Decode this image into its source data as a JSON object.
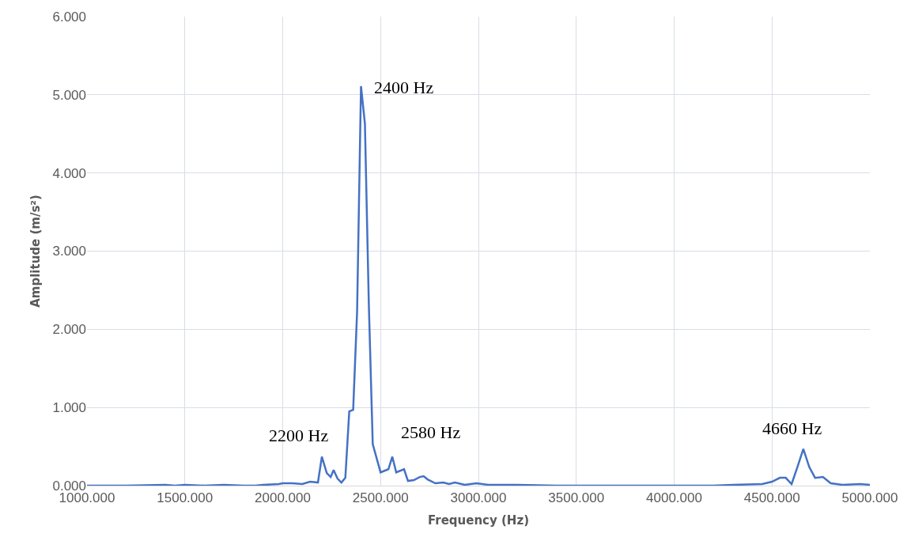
{
  "chart_data": {
    "type": "line",
    "xlabel": "Frequency (Hz)",
    "ylabel": "Amplitude (m/s²)",
    "series": [
      {
        "color": "#4472c4",
        "x": [
          1000,
          1200,
          1400,
          1450,
          1500,
          1600,
          1700,
          1800,
          1860,
          1900,
          1980,
          2000,
          2050,
          2100,
          2140,
          2180,
          2200,
          2225,
          2245,
          2260,
          2280,
          2300,
          2320,
          2340,
          2360,
          2380,
          2400,
          2420,
          2440,
          2460,
          2500,
          2540,
          2560,
          2580,
          2620,
          2640,
          2670,
          2700,
          2720,
          2740,
          2780,
          2820,
          2850,
          2880,
          2930,
          2990,
          3050,
          3200,
          3400,
          3600,
          3800,
          4000,
          4200,
          4300,
          4450,
          4500,
          4540,
          4570,
          4600,
          4630,
          4660,
          4690,
          4720,
          4760,
          4800,
          4860,
          4950,
          5000
        ],
        "values": [
          0,
          0,
          0.01,
          0,
          0.01,
          0,
          0.01,
          0,
          0,
          0.01,
          0.02,
          0.03,
          0.03,
          0.02,
          0.05,
          0.04,
          0.37,
          0.16,
          0.11,
          0.2,
          0.09,
          0.04,
          0.1,
          0.95,
          0.97,
          2.22,
          5.11,
          4.63,
          2.32,
          0.53,
          0.17,
          0.21,
          0.37,
          0.17,
          0.21,
          0.06,
          0.07,
          0.11,
          0.12,
          0.08,
          0.03,
          0.04,
          0.02,
          0.04,
          0.01,
          0.03,
          0.01,
          0.01,
          0,
          0,
          0,
          0,
          0,
          0.01,
          0.02,
          0.05,
          0.1,
          0.1,
          0.02,
          0.24,
          0.47,
          0.24,
          0.1,
          0.11,
          0.03,
          0.01,
          0.02,
          0.01
        ]
      }
    ],
    "xlim": [
      1000,
      5000
    ],
    "xticks": [
      {
        "value": 1000,
        "label": "1000.000"
      },
      {
        "value": 1500,
        "label": "1500.000"
      },
      {
        "value": 2000,
        "label": "2000.000"
      },
      {
        "value": 2500,
        "label": "2500.000"
      },
      {
        "value": 3000,
        "label": "3000.000"
      },
      {
        "value": 3500,
        "label": "3500.000"
      },
      {
        "value": 4000,
        "label": "4000.000"
      },
      {
        "value": 4500,
        "label": "4500.000"
      },
      {
        "value": 5000,
        "label": "5000.000"
      }
    ],
    "ylim": [
      0,
      6
    ],
    "yticks": [
      {
        "value": 0,
        "label": "0.000"
      },
      {
        "value": 1,
        "label": "1.000"
      },
      {
        "value": 2,
        "label": "2.000"
      },
      {
        "value": 3,
        "label": "3.000"
      },
      {
        "value": 4,
        "label": "4.000"
      },
      {
        "value": 5,
        "label": "5.000"
      },
      {
        "value": 6,
        "label": "6.000"
      }
    ],
    "grid": true,
    "marker": "none",
    "line_style": "solid",
    "annotations": [
      {
        "text": "2400 Hz",
        "x": 2400,
        "y": 5.11
      },
      {
        "text": "2200 Hz",
        "x": 2200,
        "y": 0.37
      },
      {
        "text": "2580 Hz",
        "x": 2580,
        "y": 0.17
      },
      {
        "text": "4660 Hz",
        "x": 4660,
        "y": 0.47
      }
    ]
  }
}
